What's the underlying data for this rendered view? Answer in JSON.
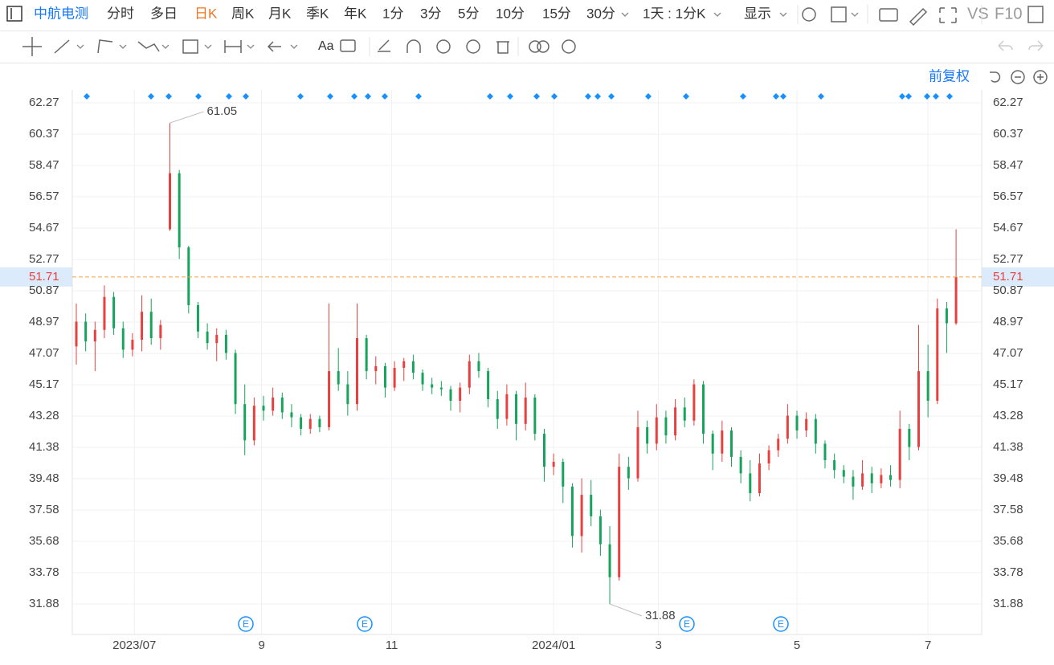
{
  "toolbar": {
    "stock": "中航电测",
    "periods": [
      "分时",
      "多日",
      "日K",
      "周K",
      "月K",
      "季K",
      "年K",
      "1分",
      "3分",
      "5分",
      "10分",
      "15分",
      "30分"
    ],
    "active": 2,
    "combo": "1天 : 1分K",
    "display": "显示",
    "vs": "VS",
    "f10": "F10"
  },
  "adjust": "前复权",
  "events": [
    "E",
    "E",
    "E",
    "E"
  ],
  "chart_data": {
    "type": "candlestick",
    "ohlc": [
      [
        47.5,
        50.1,
        46.4,
        49.0
      ],
      [
        49.0,
        49.5,
        47.2,
        47.8
      ],
      [
        47.8,
        49.0,
        46.0,
        48.5
      ],
      [
        48.5,
        51.2,
        48.0,
        50.5
      ],
      [
        50.5,
        50.8,
        48.2,
        48.6
      ],
      [
        48.6,
        49.0,
        46.8,
        47.3
      ],
      [
        47.3,
        48.3,
        46.9,
        47.9
      ],
      [
        47.9,
        50.6,
        47.2,
        49.6
      ],
      [
        49.6,
        50.4,
        47.6,
        48.0
      ],
      [
        48.0,
        49.1,
        47.3,
        48.8
      ],
      [
        54.6,
        61.05,
        54.5,
        58.0
      ],
      [
        58.0,
        58.2,
        52.8,
        53.5
      ],
      [
        53.5,
        53.6,
        49.5,
        50.0
      ],
      [
        50.0,
        50.2,
        48.0,
        48.4
      ],
      [
        48.4,
        48.9,
        47.3,
        47.7
      ],
      [
        47.7,
        48.6,
        46.6,
        48.2
      ],
      [
        48.2,
        48.5,
        46.7,
        47.1
      ],
      [
        47.1,
        47.3,
        43.4,
        44.0
      ],
      [
        44.0,
        45.2,
        40.9,
        41.8
      ],
      [
        41.8,
        44.4,
        41.5,
        43.9
      ],
      [
        43.9,
        44.5,
        43.0,
        43.6
      ],
      [
        43.6,
        45.0,
        43.3,
        44.4
      ],
      [
        44.4,
        44.7,
        43.1,
        43.5
      ],
      [
        43.5,
        44.0,
        42.6,
        43.2
      ],
      [
        43.2,
        43.4,
        42.1,
        42.5
      ],
      [
        42.5,
        43.4,
        42.2,
        43.1
      ],
      [
        43.1,
        43.3,
        42.3,
        42.6
      ],
      [
        42.6,
        50.1,
        42.4,
        46.0
      ],
      [
        46.0,
        47.4,
        44.8,
        45.2
      ],
      [
        45.2,
        46.0,
        43.3,
        44.0
      ],
      [
        44.0,
        50.1,
        43.6,
        48.0
      ],
      [
        48.0,
        48.2,
        45.5,
        46.0
      ],
      [
        46.0,
        46.9,
        45.2,
        46.3
      ],
      [
        46.3,
        46.5,
        44.4,
        45.0
      ],
      [
        45.0,
        46.6,
        44.8,
        46.2
      ],
      [
        46.2,
        46.8,
        45.4,
        46.6
      ],
      [
        46.6,
        47.0,
        45.5,
        45.9
      ],
      [
        45.9,
        46.1,
        44.8,
        45.2
      ],
      [
        45.2,
        45.6,
        44.6,
        45.0
      ],
      [
        45.0,
        45.4,
        44.5,
        44.9
      ],
      [
        44.9,
        45.1,
        43.6,
        44.2
      ],
      [
        44.2,
        45.3,
        43.5,
        45.0
      ],
      [
        45.0,
        47.0,
        44.6,
        46.6
      ],
      [
        46.6,
        47.1,
        45.6,
        46.0
      ],
      [
        46.0,
        46.2,
        43.8,
        44.3
      ],
      [
        44.3,
        44.8,
        42.5,
        43.1
      ],
      [
        43.1,
        45.2,
        42.7,
        44.6
      ],
      [
        44.6,
        44.8,
        41.8,
        42.8
      ],
      [
        42.8,
        45.3,
        42.4,
        44.4
      ],
      [
        44.4,
        44.6,
        41.8,
        42.2
      ],
      [
        42.2,
        42.5,
        39.3,
        40.2
      ],
      [
        40.2,
        41.0,
        39.7,
        40.5
      ],
      [
        40.5,
        40.7,
        38.0,
        39.0
      ],
      [
        39.0,
        39.2,
        35.3,
        36.0
      ],
      [
        36.0,
        39.5,
        35.0,
        38.5
      ],
      [
        38.5,
        39.4,
        36.6,
        37.2
      ],
      [
        37.2,
        37.6,
        34.8,
        35.5
      ],
      [
        35.5,
        36.6,
        31.88,
        33.5
      ],
      [
        33.5,
        41.0,
        33.3,
        40.2
      ],
      [
        40.2,
        40.8,
        38.8,
        39.5
      ],
      [
        39.5,
        43.6,
        39.3,
        42.6
      ],
      [
        42.6,
        43.0,
        41.0,
        41.6
      ],
      [
        41.6,
        44.0,
        41.2,
        43.2
      ],
      [
        43.2,
        43.6,
        41.6,
        42.1
      ],
      [
        42.1,
        44.3,
        41.8,
        43.8
      ],
      [
        43.8,
        44.4,
        42.6,
        43.0
      ],
      [
        43.0,
        45.5,
        42.7,
        45.2
      ],
      [
        45.2,
        45.4,
        41.6,
        42.2
      ],
      [
        42.2,
        42.4,
        40.0,
        41.0
      ],
      [
        41.0,
        43.0,
        40.5,
        42.4
      ],
      [
        42.4,
        42.6,
        40.2,
        40.8
      ],
      [
        40.8,
        41.2,
        39.2,
        39.8
      ],
      [
        39.8,
        40.6,
        38.1,
        38.6
      ],
      [
        38.6,
        41.0,
        38.4,
        40.4
      ],
      [
        40.4,
        41.5,
        40.0,
        41.2
      ],
      [
        41.2,
        42.2,
        40.8,
        41.9
      ],
      [
        41.9,
        44.0,
        41.6,
        43.3
      ],
      [
        43.3,
        43.6,
        41.9,
        42.4
      ],
      [
        42.4,
        43.5,
        42.0,
        43.1
      ],
      [
        43.1,
        43.4,
        41.0,
        41.6
      ],
      [
        41.6,
        41.8,
        40.1,
        40.6
      ],
      [
        40.6,
        41.0,
        39.5,
        40.0
      ],
      [
        40.0,
        40.3,
        39.2,
        39.6
      ],
      [
        39.6,
        40.0,
        38.2,
        39.0
      ],
      [
        39.0,
        40.6,
        38.8,
        39.8
      ],
      [
        39.8,
        40.2,
        38.6,
        39.2
      ],
      [
        39.2,
        40.1,
        38.9,
        39.7
      ],
      [
        39.7,
        40.3,
        39.0,
        39.4
      ],
      [
        39.4,
        43.6,
        38.9,
        42.5
      ],
      [
        42.5,
        42.8,
        40.6,
        41.4
      ],
      [
        41.4,
        48.8,
        41.2,
        46.0
      ],
      [
        46.0,
        47.6,
        43.2,
        44.2
      ],
      [
        44.2,
        50.4,
        44.0,
        49.8
      ],
      [
        49.8,
        50.2,
        47.1,
        48.9
      ],
      [
        48.9,
        54.6,
        48.8,
        51.71
      ]
    ],
    "up_color": "#e8403f",
    "down_color": "#16a35b",
    "high_label": 61.05,
    "low_label": 31.88,
    "last_price": 51.71,
    "ylim": [
      30.03,
      63.05
    ],
    "yticks": [
      62.27,
      60.37,
      58.47,
      56.57,
      54.67,
      52.77,
      50.87,
      48.97,
      47.07,
      45.17,
      43.28,
      41.38,
      39.48,
      37.58,
      35.68,
      33.78,
      31.88
    ],
    "xlim": [
      -0.43,
      96.74
    ],
    "xticks": [
      {
        "value": 6.2,
        "label": "2023/07"
      },
      {
        "value": 19.8,
        "label": "9"
      },
      {
        "value": 33.7,
        "label": "11"
      },
      {
        "value": 51.0,
        "label": "2024/01"
      },
      {
        "value": 62.2,
        "label": "3"
      },
      {
        "value": 77.0,
        "label": "5"
      },
      {
        "value": 91.0,
        "label": "7"
      }
    ],
    "grid": true
  }
}
